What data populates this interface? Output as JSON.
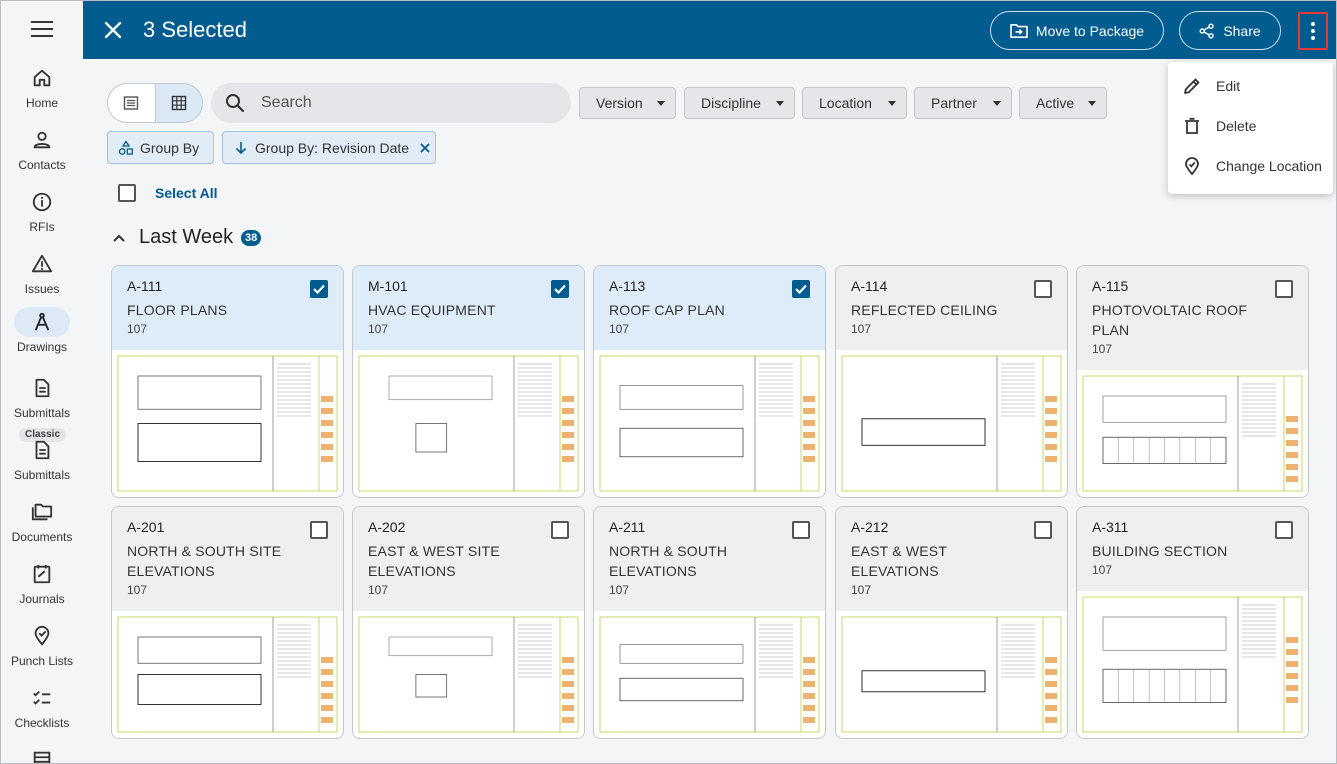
{
  "header": {
    "selected_title": "3 Selected",
    "move_label": "Move to Package",
    "share_label": "Share"
  },
  "sidebar": {
    "items": [
      {
        "label": "Home",
        "icon": "home-icon"
      },
      {
        "label": "Contacts",
        "icon": "person-icon"
      },
      {
        "label": "RFIs",
        "icon": "info-icon"
      },
      {
        "label": "Issues",
        "icon": "warning-icon"
      },
      {
        "label": "Drawings",
        "icon": "compass-icon"
      },
      {
        "label": "Submittals",
        "icon": "document-icon"
      },
      {
        "label": "Submittals",
        "icon": "document-icon",
        "badge": "Classic"
      },
      {
        "label": "Documents",
        "icon": "folders-icon"
      },
      {
        "label": "Journals",
        "icon": "journal-icon"
      },
      {
        "label": "Punch Lists",
        "icon": "pin-check-icon"
      },
      {
        "label": "Checklists",
        "icon": "checklist-icon"
      }
    ]
  },
  "search": {
    "placeholder": "Search"
  },
  "filters": [
    "Version",
    "Discipline",
    "Location",
    "Partner",
    "Active"
  ],
  "group_chips": {
    "group_by": "Group By",
    "group_by_revision": "Group By: Revision Date"
  },
  "select_all": "Select All",
  "group": {
    "title": "Last Week",
    "count": "38"
  },
  "cards": [
    {
      "number": "A-111",
      "name": "FLOOR PLANS",
      "rev": "107",
      "selected": true
    },
    {
      "number": "M-101",
      "name": "HVAC EQUIPMENT",
      "rev": "107",
      "selected": true
    },
    {
      "number": "A-113",
      "name": "ROOF CAP PLAN",
      "rev": "107",
      "selected": true
    },
    {
      "number": "A-114",
      "name": "REFLECTED CEILING",
      "rev": "107",
      "selected": false
    },
    {
      "number": "A-115",
      "name": "PHOTOVOLTAIC ROOF PLAN",
      "rev": "107",
      "selected": false
    },
    {
      "number": "A-201",
      "name": "NORTH & SOUTH SITE ELEVATIONS",
      "rev": "107",
      "selected": false
    },
    {
      "number": "A-202",
      "name": "EAST & WEST SITE ELEVATIONS",
      "rev": "107",
      "selected": false
    },
    {
      "number": "A-211",
      "name": "NORTH & SOUTH ELEVATIONS",
      "rev": "107",
      "selected": false
    },
    {
      "number": "A-212",
      "name": "EAST & WEST ELEVATIONS",
      "rev": "107",
      "selected": false
    },
    {
      "number": "A-311",
      "name": "BUILDING SECTION",
      "rev": "107",
      "selected": false
    }
  ],
  "menu": {
    "items": [
      {
        "label": "Edit",
        "icon": "pencil-icon"
      },
      {
        "label": "Delete",
        "icon": "trash-icon"
      },
      {
        "label": "Change Location",
        "icon": "location-icon"
      }
    ]
  },
  "colors": {
    "header": "#005b8f",
    "selected_card": "#deecf9",
    "accent": "#005b8f"
  }
}
